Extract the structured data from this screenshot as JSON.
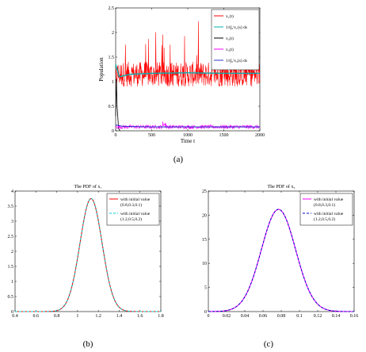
{
  "captions": [
    "(a)",
    "(b)",
    "(c)"
  ],
  "chart_data": [
    {
      "type": "line",
      "title": "",
      "xlabel": "Time t",
      "ylabel": "Population",
      "xlim": [
        0,
        2000
      ],
      "ylim": [
        0,
        2.5
      ],
      "xticks": [
        "0",
        "500",
        "1000",
        "1500",
        "2000"
      ],
      "yticks": [
        "0",
        "0.5",
        "1",
        "1.5",
        "2",
        "2.5"
      ],
      "legend": {
        "position": "top-right",
        "entries": [
          "x₁(t)",
          "1/t∫₀ᵗx₁(s) ds",
          "x₂(t)",
          "x₃(t)",
          "1/t∫₀ᵗx₃(s) ds"
        ]
      },
      "series": [
        {
          "name": "x₁(t)",
          "color": "#ff0000",
          "mean": 1.15,
          "spread": 0.25,
          "min": 0.4,
          "max": 2.4
        },
        {
          "name": "1/t∫₀ᵗx₁(s) ds",
          "color": "#00b0b0",
          "values_x": [
            0,
            50,
            200,
            500,
            1000,
            1500,
            2000
          ],
          "values_y": [
            1.35,
            1.1,
            1.15,
            1.17,
            1.18,
            1.17,
            1.17
          ]
        },
        {
          "name": "x₂(t)",
          "color": "#000000",
          "values_x": [
            0,
            10,
            20,
            40,
            60
          ],
          "values_y": [
            0.3,
            1.05,
            0.5,
            0.05,
            0.0
          ]
        },
        {
          "name": "x₃(t)",
          "color": "#ff00ff",
          "mean": 0.08,
          "spread": 0.04,
          "max": 0.28
        },
        {
          "name": "1/t∫₀ᵗx₃(s) ds",
          "color": "#3333cc",
          "values_x": [
            0,
            100,
            500,
            1000,
            2000
          ],
          "values_y": [
            0.12,
            0.09,
            0.08,
            0.08,
            0.08
          ]
        }
      ]
    },
    {
      "type": "line",
      "title": "The PDF of x₁",
      "xlabel": "",
      "ylabel": "",
      "xlim": [
        0.4,
        1.8
      ],
      "ylim": [
        0,
        4
      ],
      "xticks": [
        "0.4",
        "0.6",
        "0.8",
        "1",
        "1.2",
        "1.4",
        "1.6",
        "1.8"
      ],
      "yticks": [
        "0",
        "0.5",
        "1",
        "1.5",
        "2",
        "2.5",
        "3",
        "3.5",
        "4"
      ],
      "legend": {
        "position": "top-right",
        "entries": [
          "with initial value (0.8,0.3,0.1)",
          "with initial value (1.2,0.5,0.2)"
        ]
      },
      "series": [
        {
          "name": "with initial value (0.8,0.3,0.1)",
          "color": "#ff0000",
          "dash": false,
          "peak_x": 1.13,
          "peak_y": 3.75,
          "sigma": 0.106
        },
        {
          "name": "with initial value (1.2,0.5,0.2)",
          "color": "#00cccc",
          "dash": true,
          "peak_x": 1.13,
          "peak_y": 3.75,
          "sigma": 0.106
        }
      ]
    },
    {
      "type": "line",
      "title": "The PDF of x₃",
      "xlabel": "",
      "ylabel": "",
      "xlim": [
        0,
        0.16
      ],
      "ylim": [
        0,
        25
      ],
      "xticks": [
        "0",
        "0.02",
        "0.04",
        "0.06",
        "0.08",
        "0.1",
        "0.12",
        "0.14",
        "0.16"
      ],
      "yticks": [
        "0",
        "5",
        "10",
        "15",
        "20",
        "25"
      ],
      "legend": {
        "position": "top-right",
        "entries": [
          "with initial value (0.8,0.3,0.1)",
          "with initial value (1.2,0.5,0.2)"
        ]
      },
      "series": [
        {
          "name": "with initial value (0.8,0.3,0.1)",
          "color": "#ff00ff",
          "dash": false,
          "peak_x": 0.077,
          "peak_y": 21.2,
          "sigma": 0.0188
        },
        {
          "name": "with initial value (1.2,0.5,0.2)",
          "color": "#0000cc",
          "dash": true,
          "peak_x": 0.077,
          "peak_y": 21.2,
          "sigma": 0.0188
        }
      ]
    }
  ]
}
